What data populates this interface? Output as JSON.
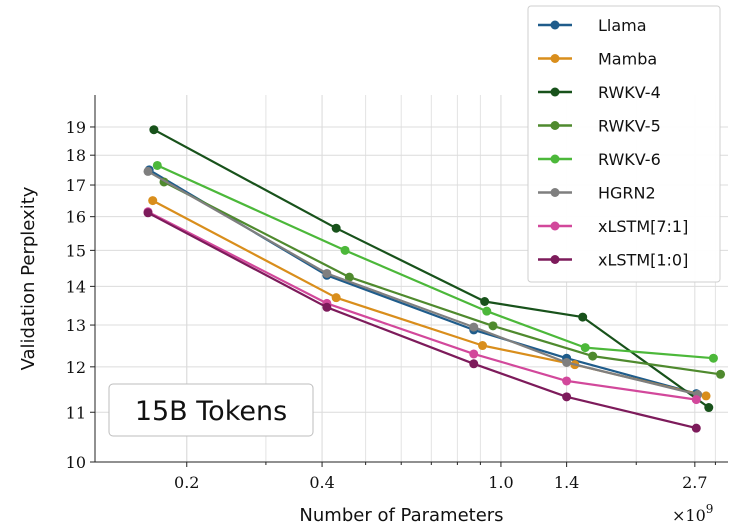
{
  "chart_data": {
    "type": "line",
    "xlabel": "Number of Parameters",
    "ylabel": "Validation Perplexity",
    "x_scale": "log",
    "y_scale": "log",
    "xlim": [
      0.125,
      3.2
    ],
    "ylim": [
      10,
      20.2
    ],
    "x_multiplier": "×10",
    "x_multiplier_exp": "9",
    "x_ticks": [
      {
        "value": 0.2,
        "label": "0.2"
      },
      {
        "value": 0.4,
        "label": "0.4"
      },
      {
        "value": 1.0,
        "label": "1.0"
      },
      {
        "value": 1.4,
        "label": "1.4"
      },
      {
        "value": 2.7,
        "label": "2.7"
      }
    ],
    "y_ticks": [
      {
        "value": 10,
        "label": "10"
      },
      {
        "value": 11,
        "label": "11"
      },
      {
        "value": 12,
        "label": "12"
      },
      {
        "value": 13,
        "label": "13"
      },
      {
        "value": 14,
        "label": "14"
      },
      {
        "value": 15,
        "label": "15"
      },
      {
        "value": 16,
        "label": "16"
      },
      {
        "value": 17,
        "label": "17"
      },
      {
        "value": 18,
        "label": "18"
      },
      {
        "value": 19,
        "label": "19"
      }
    ],
    "grid": true,
    "legend_position": "top-right",
    "annotation": "15B Tokens",
    "series": [
      {
        "name": "Llama",
        "color": "#1f5c8b",
        "x": [
          0.165,
          0.41,
          0.87,
          1.4,
          2.72
        ],
        "y": [
          17.5,
          14.3,
          12.88,
          12.2,
          11.4
        ]
      },
      {
        "name": "Mamba",
        "color": "#d98e1c",
        "x": [
          0.168,
          0.43,
          0.91,
          1.46,
          2.86
        ],
        "y": [
          16.5,
          13.7,
          12.5,
          12.05,
          11.35
        ]
      },
      {
        "name": "RWKV-4",
        "color": "#18521b",
        "x": [
          0.169,
          0.43,
          0.92,
          1.52,
          2.9
        ],
        "y": [
          18.9,
          15.65,
          13.6,
          13.2,
          11.1
        ]
      },
      {
        "name": "RWKV-5",
        "color": "#4f8a2e",
        "x": [
          0.178,
          0.46,
          0.96,
          1.6,
          3.08
        ],
        "y": [
          17.1,
          14.25,
          12.98,
          12.25,
          11.83
        ]
      },
      {
        "name": "RWKV-6",
        "color": "#4cb83a",
        "x": [
          0.172,
          0.45,
          0.93,
          1.54,
          2.97
        ],
        "y": [
          17.65,
          15.0,
          13.35,
          12.45,
          12.2
        ]
      },
      {
        "name": "HGRN2",
        "color": "#7f7f7f",
        "x": [
          0.164,
          0.41,
          0.87,
          1.4,
          2.74
        ],
        "y": [
          17.45,
          14.35,
          12.95,
          12.1,
          11.38
        ]
      },
      {
        "name": "xLSTM[7:1]",
        "color": "#d2489b",
        "x": [
          0.164,
          0.41,
          0.87,
          1.4,
          2.72
        ],
        "y": [
          16.15,
          13.55,
          12.3,
          11.68,
          11.27
        ]
      },
      {
        "name": "xLSTM[1:0]",
        "color": "#7d1b5b",
        "x": [
          0.164,
          0.41,
          0.87,
          1.4,
          2.72
        ],
        "y": [
          16.12,
          13.45,
          12.07,
          11.33,
          10.67
        ]
      }
    ]
  }
}
